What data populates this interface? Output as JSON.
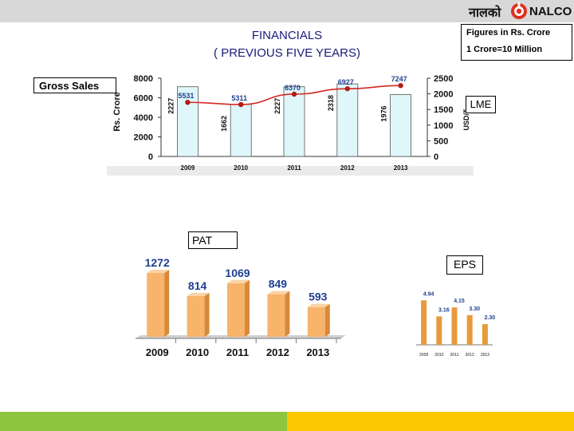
{
  "header": {
    "logo_hindi": "नालको",
    "logo_text": "NALCO",
    "title_line1": "FINANCIALS",
    "title_line2": "( PREVIOUS FIVE YEARS)"
  },
  "notes": {
    "figures": "Figures in Rs. Crore",
    "crore": "1 Crore=10 Million"
  },
  "labels": {
    "gross_sales": "Gross Sales",
    "lme": "LME",
    "pat": "PAT",
    "eps": "EPS"
  },
  "colors": {
    "bar_cyan": "#dff7fb",
    "line_red": "#d7281f",
    "bar_orange": "#f7b46a",
    "accent_green": "#8cc63f",
    "accent_yellow": "#fcc800",
    "topbar": "#d8d8d8"
  },
  "chart_data": [
    {
      "name": "gross-sales-vs-lme",
      "type": "bar",
      "title": "Gross Sales",
      "categories": [
        "2009",
        "2010",
        "2011",
        "2012",
        "2013"
      ],
      "series": [
        {
          "name": "Gross Sales",
          "type": "line",
          "axis": "left",
          "values": [
            5531,
            5311,
            6370,
            6927,
            7247
          ],
          "labels": [
            "5531",
            "5311",
            "6370",
            "6927",
            "7247"
          ]
        },
        {
          "name": "LME",
          "type": "bar",
          "axis": "right",
          "values": [
            2227,
            1662,
            2227,
            2318,
            1976
          ],
          "labels": [
            "2227",
            "1662",
            "2227",
            "2318",
            "1976"
          ]
        }
      ],
      "ylabel_left": "Rs. Crore",
      "ylabel_right": "USD/T",
      "ylim_left": [
        0,
        8000
      ],
      "yticks_left": [
        "0",
        "2000",
        "4000",
        "6000",
        "8000"
      ],
      "ylim_right": [
        0,
        2500
      ],
      "yticks_right": [
        "0",
        "500",
        "1000",
        "1500",
        "2000",
        "2500"
      ]
    },
    {
      "name": "pat",
      "type": "bar",
      "title": "PAT",
      "categories": [
        "2009",
        "2010",
        "2011",
        "2012",
        "2013"
      ],
      "values": [
        1272,
        814,
        1069,
        849,
        593
      ],
      "labels": [
        "1272",
        "814",
        "1069",
        "849",
        "593"
      ],
      "ylim": [
        0,
        1400
      ]
    },
    {
      "name": "eps",
      "type": "bar",
      "title": "EPS",
      "categories": [
        "2009",
        "2010",
        "2011",
        "2012",
        "2013"
      ],
      "values": [
        4.94,
        3.16,
        4.15,
        3.3,
        2.3
      ],
      "labels": [
        "4.94",
        "3.16",
        "4.15",
        "3.30",
        "2.30"
      ],
      "ylim": [
        0,
        5.5
      ]
    }
  ]
}
